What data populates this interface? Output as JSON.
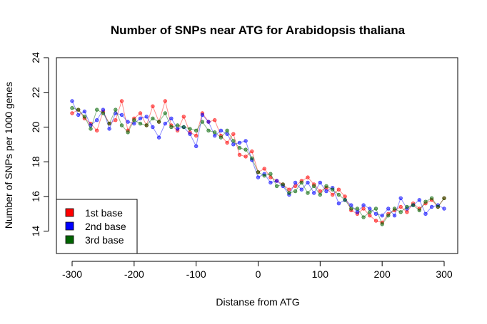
{
  "chart_data": {
    "type": "line",
    "title": "Number of SNPs near ATG for Arabidopsis thaliana",
    "xlabel": "Distanse from ATG",
    "ylabel": "Number of SNPs per 1000 genes",
    "xlim": [
      -300,
      300
    ],
    "ylim": [
      13,
      24
    ],
    "xticks": [
      "-300",
      "-200",
      "-100",
      "0",
      "100",
      "200",
      "300"
    ],
    "yticks": [
      "14",
      "16",
      "18",
      "20",
      "22",
      "24"
    ],
    "legend_position": "bottom-left",
    "x": [
      -300,
      -290,
      -280,
      -270,
      -260,
      -250,
      -240,
      -230,
      -220,
      -210,
      -200,
      -190,
      -180,
      -170,
      -160,
      -150,
      -140,
      -130,
      -120,
      -110,
      -100,
      -90,
      -80,
      -70,
      -60,
      -50,
      -40,
      -30,
      -20,
      -10,
      0,
      10,
      20,
      30,
      40,
      50,
      60,
      70,
      80,
      90,
      100,
      110,
      120,
      130,
      140,
      150,
      160,
      170,
      180,
      190,
      200,
      210,
      220,
      230,
      240,
      250,
      260,
      270,
      280,
      290,
      300
    ],
    "series": [
      {
        "name": "1st base",
        "color": "#ff0000",
        "values": [
          20.8,
          21.0,
          20.5,
          20.2,
          19.8,
          20.9,
          20.2,
          20.4,
          21.5,
          19.8,
          20.5,
          20.8,
          20.1,
          21.2,
          20.3,
          21.5,
          20.1,
          19.8,
          20.6,
          19.7,
          19.5,
          20.8,
          20.3,
          20.4,
          19.5,
          19.1,
          19.6,
          18.4,
          18.3,
          18.6,
          17.4,
          17.6,
          17.1,
          16.9,
          16.7,
          16.4,
          16.6,
          16.9,
          17.1,
          16.7,
          16.3,
          16.5,
          16.1,
          16.4,
          16.0,
          15.2,
          15.0,
          15.3,
          14.9,
          14.6,
          14.5,
          15.0,
          15.2,
          15.4,
          15.1,
          15.6,
          15.3,
          15.6,
          15.8,
          15.4,
          15.9
        ]
      },
      {
        "name": "2nd base",
        "color": "#0000ff",
        "values": [
          21.5,
          20.7,
          20.9,
          20.1,
          20.4,
          21.0,
          19.9,
          20.8,
          20.7,
          20.3,
          20.2,
          20.5,
          20.6,
          20.0,
          19.4,
          20.2,
          20.5,
          19.9,
          20.0,
          19.6,
          18.9,
          20.7,
          20.3,
          19.5,
          19.8,
          19.6,
          19.0,
          19.1,
          19.2,
          18.1,
          17.1,
          17.3,
          16.8,
          16.9,
          16.6,
          16.1,
          16.8,
          16.4,
          16.8,
          16.2,
          16.8,
          16.3,
          16.5,
          15.6,
          15.8,
          15.5,
          15.1,
          15.5,
          15.3,
          15.0,
          14.9,
          15.3,
          14.9,
          15.9,
          15.3,
          15.5,
          15.8,
          15.0,
          15.4,
          15.5,
          15.3
        ]
      },
      {
        "name": "3rd base",
        "color": "#006400",
        "values": [
          21.1,
          21.0,
          20.6,
          19.9,
          21.0,
          20.8,
          20.2,
          21.0,
          20.1,
          19.7,
          20.4,
          20.2,
          20.1,
          20.5,
          20.3,
          20.8,
          20.0,
          20.1,
          20.0,
          19.9,
          19.8,
          20.3,
          19.8,
          19.7,
          19.4,
          19.8,
          19.2,
          18.8,
          18.7,
          18.2,
          17.4,
          17.2,
          17.3,
          16.6,
          16.7,
          16.2,
          16.3,
          16.8,
          16.2,
          16.6,
          16.1,
          16.6,
          16.4,
          16.1,
          15.8,
          15.3,
          15.3,
          14.8,
          15.1,
          15.3,
          14.4,
          14.9,
          15.3,
          15.1,
          15.4,
          15.5,
          15.2,
          15.7,
          15.9,
          15.4,
          15.9
        ]
      }
    ]
  }
}
